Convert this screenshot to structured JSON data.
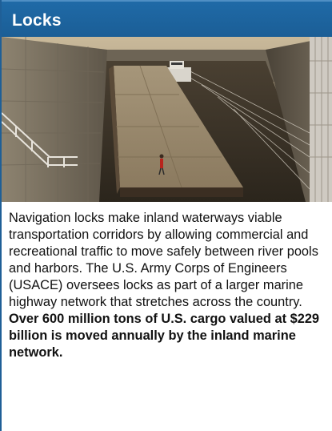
{
  "header": {
    "title": "Locks"
  },
  "photo": {
    "subject": "barge-in-navigation-lock"
  },
  "body": {
    "paragraph": "Navigation locks make inland waterways viable transportation corridors by allowing commercial and recreational traffic to move safely between river pools and harbors. The U.S. Army Corps of Engineers (USACE) oversees locks as part of a larger marine highway network that stretches across the country.",
    "emphasis": "Over 600 million tons of U.S. cargo valued at $229 billion is moved annually by the inland marine network."
  },
  "colors": {
    "header_bg": "#1b5e96",
    "header_text": "#ffffff",
    "body_text": "#111111"
  }
}
